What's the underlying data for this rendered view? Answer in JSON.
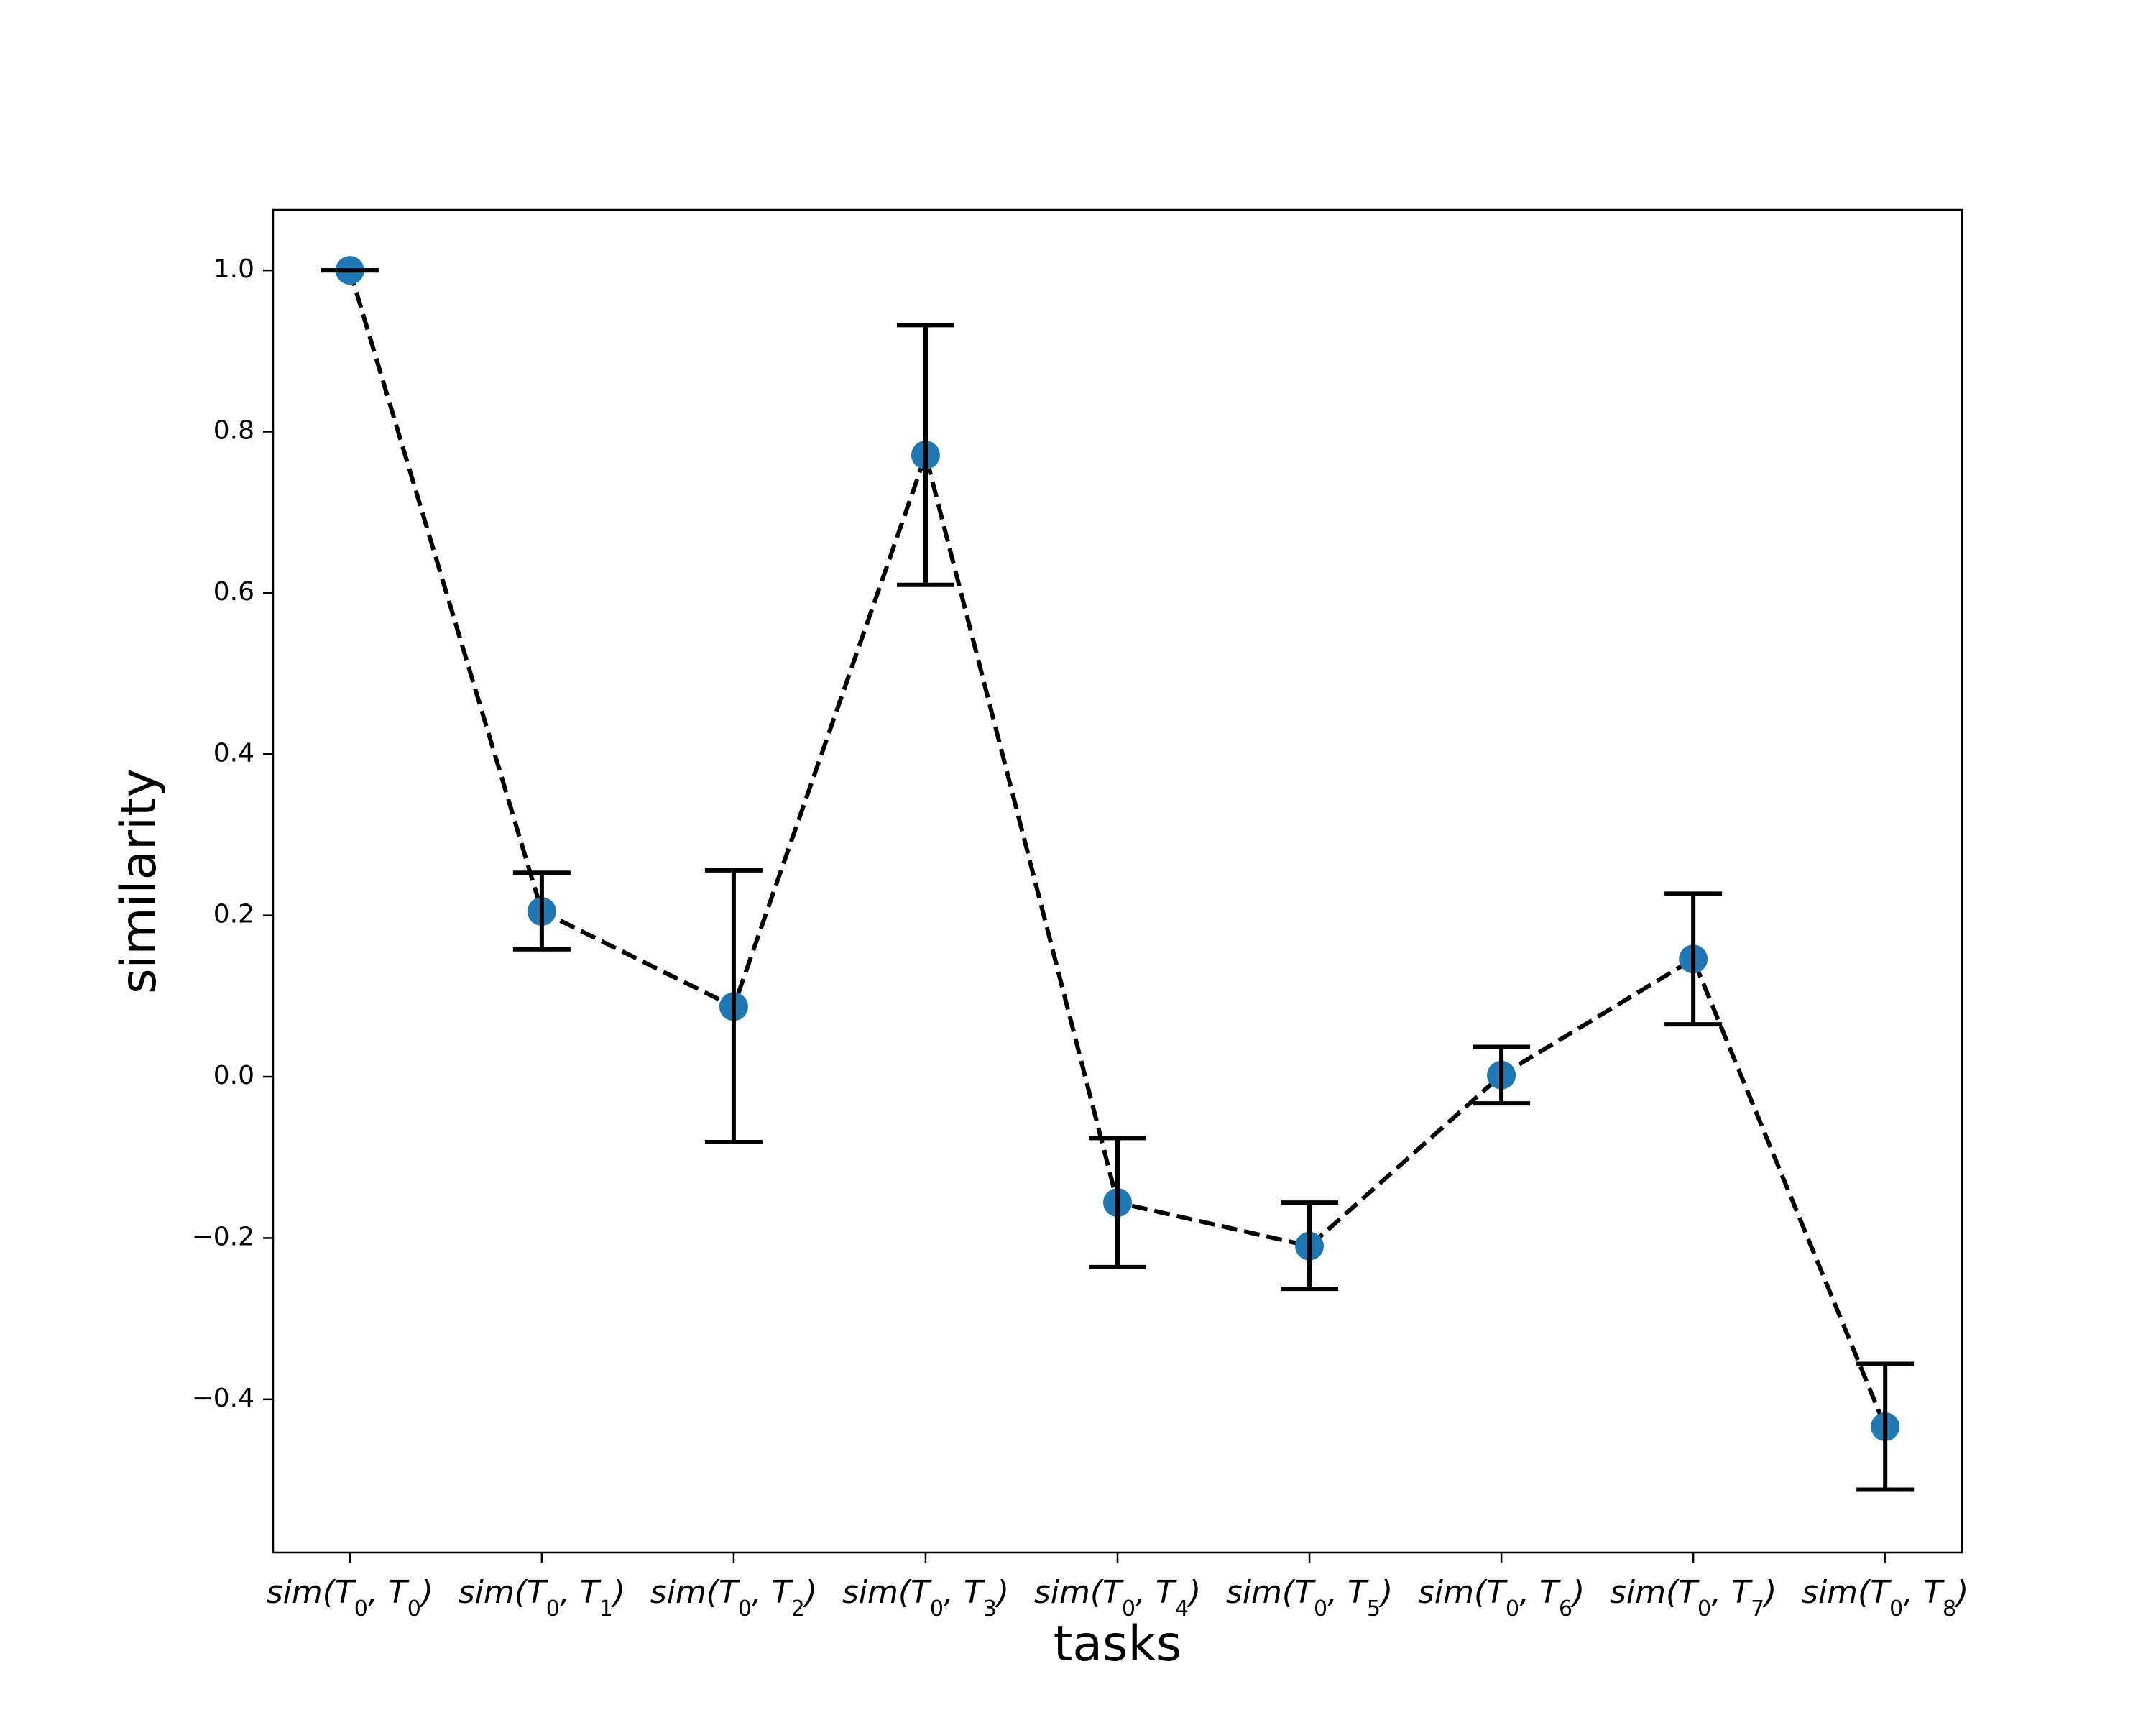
{
  "chart_data": {
    "type": "scatter",
    "title": "",
    "xlabel": "tasks",
    "ylabel": "similarity",
    "categories": [
      {
        "base": "sim(T",
        "sub0": "0",
        "mid": ", T",
        "sub1": "0",
        "end": ")"
      },
      {
        "base": "sim(T",
        "sub0": "0",
        "mid": ", T",
        "sub1": "1",
        "end": ")"
      },
      {
        "base": "sim(T",
        "sub0": "0",
        "mid": ", T",
        "sub1": "2",
        "end": ")"
      },
      {
        "base": "sim(T",
        "sub0": "0",
        "mid": ", T",
        "sub1": "3",
        "end": ")"
      },
      {
        "base": "sim(T",
        "sub0": "0",
        "mid": ", T",
        "sub1": "4",
        "end": ")"
      },
      {
        "base": "sim(T",
        "sub0": "0",
        "mid": ", T",
        "sub1": "5",
        "end": ")"
      },
      {
        "base": "sim(T",
        "sub0": "0",
        "mid": ", T",
        "sub1": "6",
        "end": ")"
      },
      {
        "base": "sim(T",
        "sub0": "0",
        "mid": ", T",
        "sub1": "7",
        "end": ")"
      },
      {
        "base": "sim(T",
        "sub0": "0",
        "mid": ", T",
        "sub1": "8",
        "end": ")"
      }
    ],
    "values": [
      1.0,
      0.205,
      0.087,
      0.771,
      -0.156,
      -0.21,
      0.002,
      0.146,
      -0.434
    ],
    "error_upper": [
      1.0,
      0.253,
      0.256,
      0.932,
      -0.076,
      -0.156,
      0.037,
      0.227,
      -0.356
    ],
    "error_lower": [
      1.0,
      0.158,
      -0.081,
      0.61,
      -0.236,
      -0.263,
      -0.033,
      0.065,
      -0.512
    ],
    "yticks": [
      -0.4,
      -0.2,
      0.0,
      0.2,
      0.4,
      0.6,
      0.8,
      1.0
    ],
    "ytick_labels": [
      "−0.4",
      "−0.2",
      "0.0",
      "0.2",
      "0.4",
      "0.6",
      "0.8",
      "1.0"
    ],
    "ylim": [
      -0.59,
      1.075
    ],
    "xlim": [
      -0.4,
      8.4
    ],
    "grid": false,
    "legend": "none",
    "colors": {
      "point": "#1f77b4",
      "line": "#000000",
      "errorbar": "#000000"
    }
  }
}
